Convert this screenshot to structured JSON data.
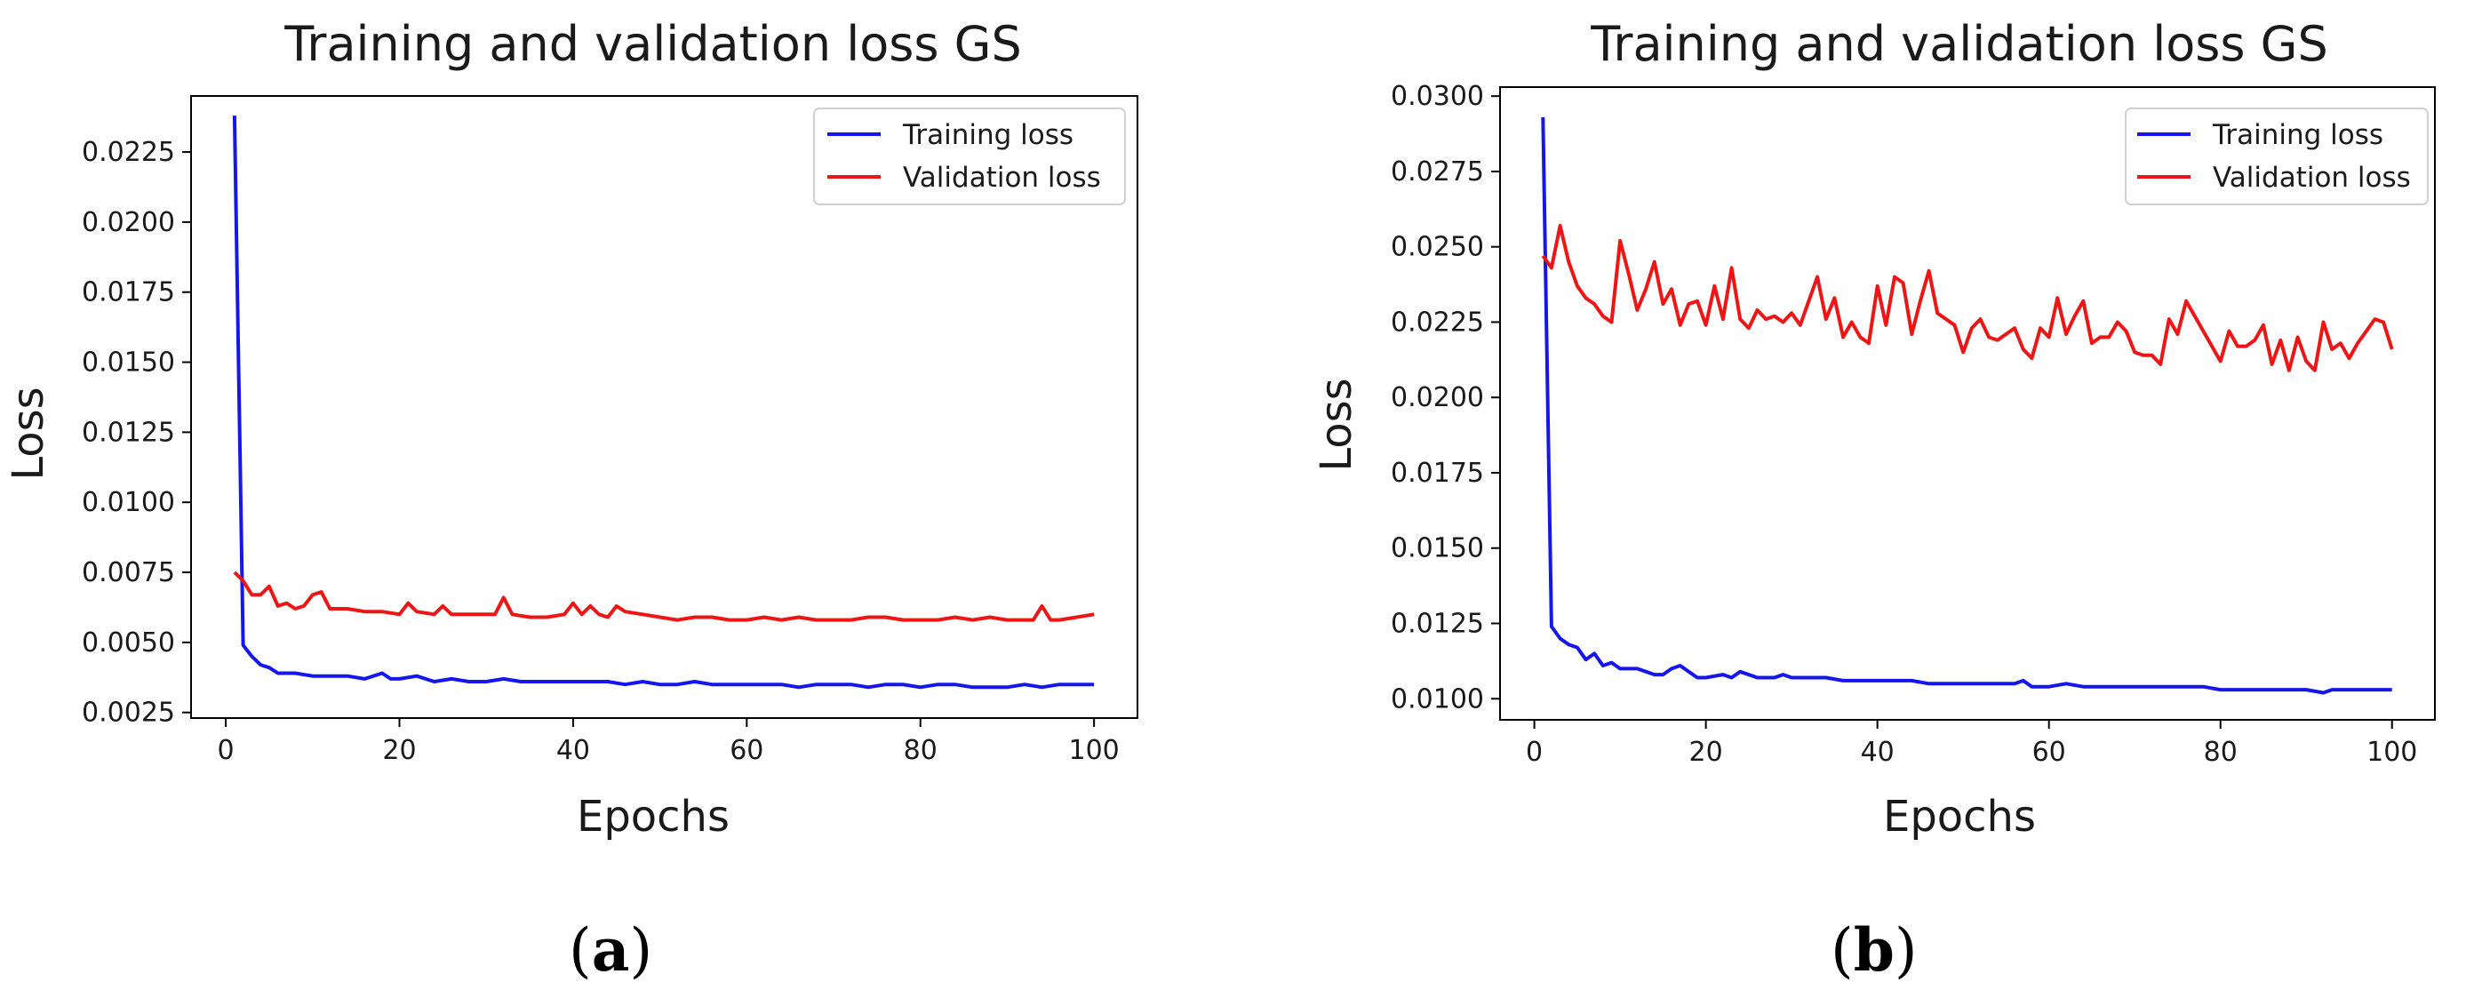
{
  "chart_data": [
    {
      "type": "line",
      "title": "Training and validation loss GS",
      "xlabel": "Epochs",
      "ylabel": "Loss",
      "panel_label": "a",
      "xlim": [
        -4,
        105
      ],
      "ylim": [
        0.0023,
        0.0245
      ],
      "xticks": [
        0,
        20,
        40,
        60,
        80,
        100
      ],
      "xtick_labels": [
        "0",
        "20",
        "40",
        "60",
        "80",
        "100"
      ],
      "yticks": [
        0.0025,
        0.005,
        0.0075,
        0.01,
        0.0125,
        0.015,
        0.0175,
        0.02,
        0.0225
      ],
      "ytick_labels": [
        "0.0025",
        "0.0050",
        "0.0075",
        "0.0100",
        "0.0125",
        "0.0150",
        "0.0175",
        "0.0200",
        "0.0225"
      ],
      "legend": "top-right",
      "series": [
        {
          "name": "Training loss",
          "color": "#1515ee",
          "x": [
            1,
            2,
            3,
            4,
            5,
            6,
            8,
            10,
            12,
            14,
            16,
            18,
            19,
            20,
            22,
            24,
            26,
            28,
            30,
            32,
            34,
            36,
            38,
            40,
            42,
            44,
            46,
            48,
            50,
            52,
            54,
            56,
            58,
            60,
            62,
            64,
            66,
            68,
            70,
            72,
            74,
            76,
            78,
            80,
            82,
            84,
            86,
            88,
            90,
            92,
            94,
            96,
            98,
            100
          ],
          "values": [
            0.0238,
            0.0049,
            0.0045,
            0.0042,
            0.0041,
            0.0039,
            0.0039,
            0.0038,
            0.0038,
            0.0038,
            0.0037,
            0.0039,
            0.0037,
            0.0037,
            0.0038,
            0.0036,
            0.0037,
            0.0036,
            0.0036,
            0.0037,
            0.0036,
            0.0036,
            0.0036,
            0.0036,
            0.0036,
            0.0036,
            0.0035,
            0.0036,
            0.0035,
            0.0035,
            0.0036,
            0.0035,
            0.0035,
            0.0035,
            0.0035,
            0.0035,
            0.0034,
            0.0035,
            0.0035,
            0.0035,
            0.0034,
            0.0035,
            0.0035,
            0.0034,
            0.0035,
            0.0035,
            0.0034,
            0.0034,
            0.0034,
            0.0035,
            0.0034,
            0.0035,
            0.0035,
            0.0035
          ]
        },
        {
          "name": "Validation loss",
          "color": "#ee1515",
          "x": [
            1,
            2,
            3,
            4,
            5,
            6,
            7,
            8,
            9,
            10,
            11,
            12,
            14,
            16,
            18,
            20,
            21,
            22,
            24,
            25,
            26,
            28,
            30,
            31,
            32,
            33,
            35,
            37,
            39,
            40,
            41,
            42,
            43,
            44,
            45,
            46,
            48,
            50,
            52,
            54,
            56,
            58,
            60,
            62,
            64,
            66,
            68,
            70,
            72,
            74,
            76,
            78,
            80,
            82,
            84,
            86,
            88,
            90,
            92,
            93,
            94,
            95,
            96,
            98,
            100
          ],
          "values": [
            0.0075,
            0.0072,
            0.0067,
            0.0067,
            0.007,
            0.0063,
            0.0064,
            0.0062,
            0.0063,
            0.0067,
            0.0068,
            0.0062,
            0.0062,
            0.0061,
            0.0061,
            0.006,
            0.0064,
            0.0061,
            0.006,
            0.0063,
            0.006,
            0.006,
            0.006,
            0.006,
            0.0066,
            0.006,
            0.0059,
            0.0059,
            0.006,
            0.0064,
            0.006,
            0.0063,
            0.006,
            0.0059,
            0.0063,
            0.0061,
            0.006,
            0.0059,
            0.0058,
            0.0059,
            0.0059,
            0.0058,
            0.0058,
            0.0059,
            0.0058,
            0.0059,
            0.0058,
            0.0058,
            0.0058,
            0.0059,
            0.0059,
            0.0058,
            0.0058,
            0.0058,
            0.0059,
            0.0058,
            0.0059,
            0.0058,
            0.0058,
            0.0058,
            0.0063,
            0.0058,
            0.0058,
            0.0059,
            0.006
          ]
        }
      ]
    },
    {
      "type": "line",
      "title": "Training and validation loss GS",
      "xlabel": "Epochs",
      "ylabel": "Loss",
      "panel_label": "b",
      "xlim": [
        -4,
        105
      ],
      "ylim": [
        0.0093,
        0.0303
      ],
      "xticks": [
        0,
        20,
        40,
        60,
        80,
        100
      ],
      "xtick_labels": [
        "0",
        "20",
        "40",
        "60",
        "80",
        "100"
      ],
      "yticks": [
        0.01,
        0.0125,
        0.015,
        0.0175,
        0.02,
        0.0225,
        0.025,
        0.0275,
        0.03
      ],
      "ytick_labels": [
        "0.0100",
        "0.0125",
        "0.0150",
        "0.0175",
        "0.0200",
        "0.0225",
        "0.0250",
        "0.0275",
        "0.0300"
      ],
      "legend": "top-right",
      "series": [
        {
          "name": "Training loss",
          "color": "#1515ee",
          "x": [
            1,
            2,
            3,
            4,
            5,
            6,
            7,
            8,
            9,
            10,
            11,
            12,
            13,
            14,
            15,
            16,
            17,
            18,
            19,
            20,
            22,
            23,
            24,
            26,
            28,
            29,
            30,
            32,
            34,
            36,
            38,
            40,
            42,
            44,
            46,
            48,
            50,
            52,
            54,
            56,
            57,
            58,
            60,
            62,
            64,
            66,
            68,
            70,
            72,
            74,
            76,
            78,
            80,
            82,
            84,
            86,
            88,
            90,
            92,
            93,
            94,
            96,
            98,
            100
          ],
          "values": [
            0.0293,
            0.0124,
            0.012,
            0.0118,
            0.0117,
            0.0113,
            0.0115,
            0.0111,
            0.0112,
            0.011,
            0.011,
            0.011,
            0.0109,
            0.0108,
            0.0108,
            0.011,
            0.0111,
            0.0109,
            0.0107,
            0.0107,
            0.0108,
            0.0107,
            0.0109,
            0.0107,
            0.0107,
            0.0108,
            0.0107,
            0.0107,
            0.0107,
            0.0106,
            0.0106,
            0.0106,
            0.0106,
            0.0106,
            0.0105,
            0.0105,
            0.0105,
            0.0105,
            0.0105,
            0.0105,
            0.0106,
            0.0104,
            0.0104,
            0.0105,
            0.0104,
            0.0104,
            0.0104,
            0.0104,
            0.0104,
            0.0104,
            0.0104,
            0.0104,
            0.0103,
            0.0103,
            0.0103,
            0.0103,
            0.0103,
            0.0103,
            0.0102,
            0.0103,
            0.0103,
            0.0103,
            0.0103,
            0.0103
          ]
        },
        {
          "name": "Validation loss",
          "color": "#ee1515",
          "x": [
            1,
            2,
            3,
            4,
            5,
            6,
            7,
            8,
            9,
            10,
            11,
            12,
            13,
            14,
            15,
            16,
            17,
            18,
            19,
            20,
            21,
            22,
            23,
            24,
            25,
            26,
            27,
            28,
            29,
            30,
            31,
            32,
            33,
            34,
            35,
            36,
            37,
            38,
            39,
            40,
            41,
            42,
            43,
            44,
            45,
            46,
            47,
            48,
            49,
            50,
            51,
            52,
            53,
            54,
            55,
            56,
            57,
            58,
            59,
            60,
            61,
            62,
            63,
            64,
            65,
            66,
            67,
            68,
            69,
            70,
            71,
            72,
            73,
            74,
            75,
            76,
            77,
            78,
            79,
            80,
            81,
            82,
            83,
            84,
            85,
            86,
            87,
            88,
            89,
            90,
            91,
            92,
            93,
            94,
            95,
            96,
            97,
            98,
            99,
            100
          ],
          "values": [
            0.0247,
            0.0243,
            0.0257,
            0.0245,
            0.0237,
            0.0233,
            0.0231,
            0.0227,
            0.0225,
            0.0252,
            0.0241,
            0.0229,
            0.0236,
            0.0245,
            0.0231,
            0.0236,
            0.0224,
            0.0231,
            0.0232,
            0.0224,
            0.0237,
            0.0226,
            0.0243,
            0.0226,
            0.0223,
            0.0229,
            0.0226,
            0.0227,
            0.0225,
            0.0228,
            0.0224,
            0.0232,
            0.024,
            0.0226,
            0.0233,
            0.022,
            0.0225,
            0.022,
            0.0218,
            0.0237,
            0.0224,
            0.024,
            0.0238,
            0.0221,
            0.0232,
            0.0242,
            0.0228,
            0.0226,
            0.0224,
            0.0215,
            0.0223,
            0.0226,
            0.022,
            0.0219,
            0.0221,
            0.0223,
            0.0216,
            0.0213,
            0.0223,
            0.022,
            0.0233,
            0.0221,
            0.0227,
            0.0232,
            0.0218,
            0.022,
            0.022,
            0.0225,
            0.0222,
            0.0215,
            0.0214,
            0.0214,
            0.0211,
            0.0226,
            0.0221,
            0.0232,
            0.0227,
            0.0222,
            0.0217,
            0.0212,
            0.0222,
            0.0217,
            0.0217,
            0.0219,
            0.0224,
            0.0211,
            0.0219,
            0.0209,
            0.022,
            0.0212,
            0.0209,
            0.0225,
            0.0216,
            0.0218,
            0.0213,
            0.0218,
            0.0222,
            0.0226,
            0.0225,
            0.0216
          ]
        }
      ]
    }
  ]
}
